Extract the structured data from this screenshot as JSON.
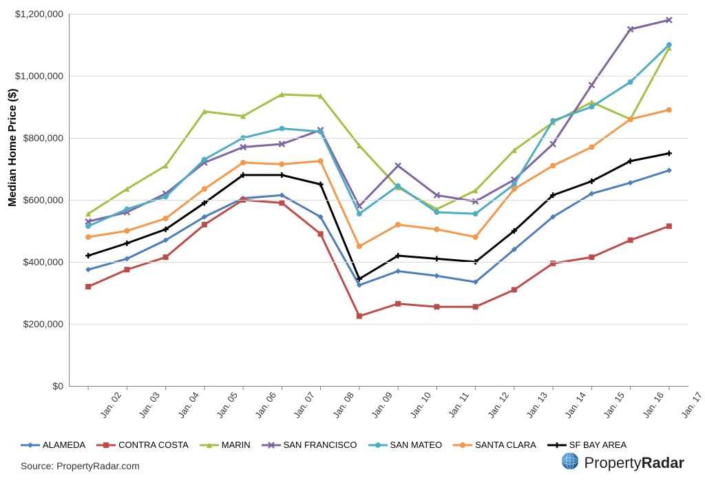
{
  "chart": {
    "type": "line",
    "y_axis_label": "Median Home Price ($)",
    "y_axis_label_fontsize": 16,
    "ylim": [
      0,
      1200000
    ],
    "ytick_step": 200000,
    "ytick_labels": [
      "$0",
      "$200,000",
      "$400,000",
      "$600,000",
      "$800,000",
      "$1,000,000",
      "$1,200,000"
    ],
    "x_categories": [
      "Jan. 02",
      "Jan. 03",
      "Jan. 04",
      "Jan. 05",
      "Jan. 06",
      "Jan. 07",
      "Jan. 08",
      "Jan. 09",
      "Jan. 10",
      "Jan. 11",
      "Jan. 12",
      "Jan. 13",
      "Jan. 14",
      "Jan. 15",
      "Jan. 16",
      "Jan. 17"
    ],
    "tick_fontsize": 14,
    "x_tick_rotation_deg": -55,
    "grid_color": "#d9d9d9",
    "axis_color": "#808080",
    "background_color": "#ffffff",
    "line_width": 3,
    "marker_size": 8,
    "series": [
      {
        "name": "ALAMEDA",
        "color": "#4a7ebb",
        "marker": "diamond",
        "values": [
          375000,
          410000,
          470000,
          545000,
          605000,
          615000,
          545000,
          325000,
          370000,
          355000,
          335000,
          440000,
          545000,
          620000,
          655000,
          695000
        ]
      },
      {
        "name": "CONTRA COSTA",
        "color": "#be4b48",
        "marker": "square",
        "values": [
          320000,
          375000,
          415000,
          520000,
          600000,
          590000,
          490000,
          225000,
          265000,
          255000,
          255000,
          310000,
          395000,
          415000,
          470000,
          515000
        ]
      },
      {
        "name": "MARIN",
        "color": "#a2c143",
        "marker": "triangle",
        "values": [
          555000,
          635000,
          710000,
          885000,
          870000,
          940000,
          935000,
          775000,
          640000,
          570000,
          630000,
          760000,
          850000,
          915000,
          860000,
          1090000
        ]
      },
      {
        "name": "SAN FRANCISCO",
        "color": "#8064a2",
        "marker": "x",
        "values": [
          530000,
          560000,
          620000,
          720000,
          770000,
          780000,
          825000,
          580000,
          710000,
          615000,
          595000,
          665000,
          780000,
          970000,
          1150000,
          1180000
        ]
      },
      {
        "name": "SAN MATEO",
        "color": "#4bacc6",
        "marker": "star",
        "values": [
          515000,
          570000,
          610000,
          730000,
          800000,
          830000,
          820000,
          555000,
          645000,
          560000,
          555000,
          650000,
          855000,
          900000,
          980000,
          1100000
        ]
      },
      {
        "name": "SANTA CLARA",
        "color": "#f79646",
        "marker": "circle",
        "values": [
          480000,
          500000,
          540000,
          635000,
          720000,
          715000,
          725000,
          450000,
          520000,
          505000,
          480000,
          635000,
          710000,
          770000,
          860000,
          890000
        ]
      },
      {
        "name": "SF BAY AREA",
        "color": "#000000",
        "marker": "plus",
        "values": [
          420000,
          460000,
          505000,
          590000,
          680000,
          680000,
          650000,
          345000,
          420000,
          410000,
          400000,
          500000,
          615000,
          660000,
          725000,
          750000
        ]
      }
    ]
  },
  "legend_label_fontsize": 13,
  "source_text": "Source: PropertyRadar.com",
  "brand": {
    "icon_name": "globe-icon",
    "text_light": "Property",
    "text_bold": "Radar",
    "icon_color": "#1d6fb8",
    "text_color": "#222222"
  }
}
